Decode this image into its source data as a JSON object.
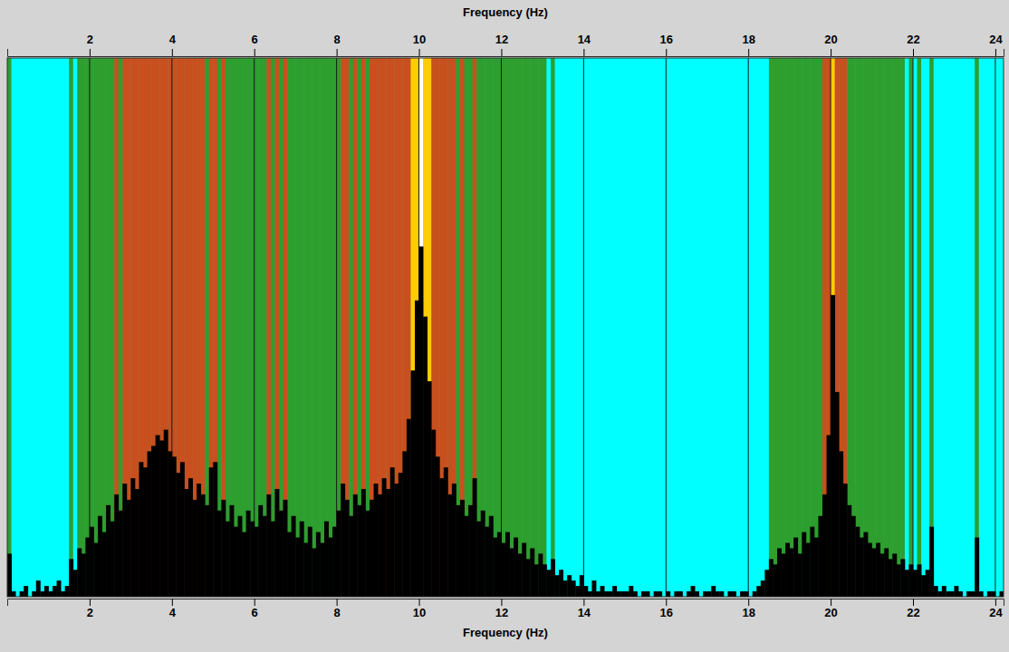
{
  "chart_data": {
    "type": "bar",
    "xlabel": "Frequency (Hz)",
    "color": "#000000",
    "grid": true,
    "tick_labels": "x",
    "xlim": [
      0,
      24.2
    ],
    "ylim": [
      0,
      100
    ],
    "xticks": [
      2,
      4,
      6,
      8,
      10,
      12,
      14,
      16,
      18,
      20,
      22,
      24
    ],
    "x": [
      0.05,
      0.15,
      0.25,
      0.35,
      0.45,
      0.55,
      0.65,
      0.75,
      0.85,
      0.95,
      1.05,
      1.15,
      1.25,
      1.35,
      1.45,
      1.55,
      1.65,
      1.75,
      1.85,
      1.95,
      2.05,
      2.15,
      2.25,
      2.35,
      2.45,
      2.55,
      2.65,
      2.75,
      2.85,
      2.95,
      3.05,
      3.15,
      3.25,
      3.35,
      3.45,
      3.55,
      3.65,
      3.75,
      3.85,
      3.95,
      4.05,
      4.15,
      4.25,
      4.35,
      4.45,
      4.55,
      4.65,
      4.75,
      4.85,
      4.95,
      5.05,
      5.15,
      5.25,
      5.35,
      5.45,
      5.55,
      5.65,
      5.75,
      5.85,
      5.95,
      6.05,
      6.15,
      6.25,
      6.35,
      6.45,
      6.55,
      6.65,
      6.75,
      6.85,
      6.95,
      7.05,
      7.15,
      7.25,
      7.35,
      7.45,
      7.55,
      7.65,
      7.75,
      7.85,
      7.95,
      8.05,
      8.15,
      8.25,
      8.35,
      8.45,
      8.55,
      8.65,
      8.75,
      8.85,
      8.95,
      9.05,
      9.15,
      9.25,
      9.35,
      9.45,
      9.55,
      9.65,
      9.75,
      9.85,
      9.95,
      10.05,
      10.15,
      10.25,
      10.35,
      10.45,
      10.55,
      10.65,
      10.75,
      10.85,
      10.95,
      11.05,
      11.15,
      11.25,
      11.35,
      11.45,
      11.55,
      11.65,
      11.75,
      11.85,
      11.95,
      12.05,
      12.15,
      12.25,
      12.35,
      12.45,
      12.55,
      12.65,
      12.75,
      12.85,
      12.95,
      13.05,
      13.15,
      13.25,
      13.35,
      13.45,
      13.55,
      13.65,
      13.75,
      13.85,
      13.95,
      14.05,
      14.15,
      14.25,
      14.35,
      14.45,
      14.55,
      14.65,
      14.75,
      14.85,
      14.95,
      15.05,
      15.15,
      15.25,
      15.35,
      15.45,
      15.55,
      15.65,
      15.75,
      15.85,
      15.95,
      16.05,
      16.15,
      16.25,
      16.35,
      16.45,
      16.55,
      16.65,
      16.75,
      16.85,
      16.95,
      17.05,
      17.15,
      17.25,
      17.35,
      17.45,
      17.55,
      17.65,
      17.75,
      17.85,
      17.95,
      18.05,
      18.15,
      18.25,
      18.35,
      18.45,
      18.55,
      18.65,
      18.75,
      18.85,
      18.95,
      19.05,
      19.15,
      19.25,
      19.35,
      19.45,
      19.55,
      19.65,
      19.75,
      19.85,
      19.95,
      20.05,
      20.15,
      20.25,
      20.35,
      20.45,
      20.55,
      20.65,
      20.75,
      20.85,
      20.95,
      21.05,
      21.15,
      21.25,
      21.35,
      21.45,
      21.55,
      21.65,
      21.75,
      21.85,
      21.95,
      22.05,
      22.15,
      22.25,
      22.35,
      22.45,
      22.55,
      22.65,
      22.75,
      22.85,
      22.95,
      23.05,
      23.15,
      23.25,
      23.35,
      23.45,
      23.55,
      23.65,
      23.75,
      23.85,
      23.95,
      24.05,
      24.15
    ],
    "values": [
      8,
      1,
      0,
      1,
      2,
      0,
      1,
      3,
      1,
      2,
      1,
      2,
      3,
      1,
      2,
      7,
      5,
      9,
      8,
      11,
      13,
      10,
      15,
      12,
      17,
      14,
      19,
      16,
      21,
      18,
      22,
      20,
      25,
      24,
      27,
      28,
      30,
      29,
      31,
      27,
      26,
      23,
      25,
      20,
      22,
      18,
      21,
      19,
      17,
      24,
      25,
      16,
      18,
      14,
      17,
      13,
      15,
      12,
      16,
      14,
      13,
      17,
      15,
      19,
      14,
      20,
      16,
      18,
      12,
      15,
      11,
      14,
      10,
      13,
      9,
      12,
      10,
      14,
      11,
      13,
      16,
      21,
      18,
      15,
      19,
      17,
      20,
      16,
      18,
      21,
      19,
      22,
      20,
      24,
      21,
      23,
      27,
      33,
      42,
      55,
      65,
      52,
      40,
      31,
      26,
      22,
      24,
      19,
      21,
      17,
      18,
      15,
      17,
      22,
      14,
      16,
      13,
      15,
      11,
      12,
      10,
      12,
      9,
      11,
      8,
      10,
      7,
      9,
      6,
      8,
      6,
      5,
      7,
      4,
      5,
      3,
      4,
      3,
      2,
      4,
      2,
      1,
      3,
      1,
      2,
      1,
      1,
      2,
      1,
      1,
      1,
      2,
      1,
      0,
      1,
      1,
      0,
      1,
      1,
      0,
      1,
      0,
      1,
      1,
      0,
      1,
      2,
      1,
      0,
      1,
      1,
      2,
      1,
      1,
      0,
      1,
      1,
      0,
      1,
      1,
      0,
      1,
      2,
      3,
      5,
      7,
      6,
      9,
      8,
      10,
      9,
      11,
      8,
      12,
      10,
      13,
      11,
      15,
      19,
      30,
      56,
      38,
      27,
      21,
      17,
      15,
      13,
      11,
      12,
      10,
      9,
      10,
      8,
      9,
      7,
      8,
      6,
      7,
      5,
      6,
      5,
      6,
      4,
      5,
      13,
      2,
      1,
      2,
      1,
      1,
      2,
      1,
      0,
      1,
      1,
      11,
      1,
      0,
      1,
      1,
      0,
      1
    ],
    "colors": [
      "#2e9e2e",
      "#00ffff",
      "#00ffff",
      "#00ffff",
      "#00ffff",
      "#00ffff",
      "#00ffff",
      "#00ffff",
      "#00ffff",
      "#00ffff",
      "#00ffff",
      "#00ffff",
      "#00ffff",
      "#00ffff",
      "#00ffff",
      "#2e9e2e",
      "#00ffff",
      "#2e9e2e",
      "#2e9e2e",
      "#2e9e2e",
      "#2e9e2e",
      "#2e9e2e",
      "#2e9e2e",
      "#2e9e2e",
      "#2e9e2e",
      "#2e9e2e",
      "#c8501e",
      "#2e9e2e",
      "#c8501e",
      "#c8501e",
      "#c8501e",
      "#c8501e",
      "#c8501e",
      "#c8501e",
      "#c8501e",
      "#c8501e",
      "#c8501e",
      "#c8501e",
      "#c8501e",
      "#c8501e",
      "#c8501e",
      "#c8501e",
      "#c8501e",
      "#c8501e",
      "#c8501e",
      "#c8501e",
      "#c8501e",
      "#c8501e",
      "#2e9e2e",
      "#c8501e",
      "#c8501e",
      "#2e9e2e",
      "#c8501e",
      "#2e9e2e",
      "#2e9e2e",
      "#2e9e2e",
      "#2e9e2e",
      "#2e9e2e",
      "#2e9e2e",
      "#2e9e2e",
      "#2e9e2e",
      "#2e9e2e",
      "#2e9e2e",
      "#c8501e",
      "#2e9e2e",
      "#c8501e",
      "#2e9e2e",
      "#c8501e",
      "#2e9e2e",
      "#2e9e2e",
      "#2e9e2e",
      "#2e9e2e",
      "#2e9e2e",
      "#2e9e2e",
      "#2e9e2e",
      "#2e9e2e",
      "#2e9e2e",
      "#2e9e2e",
      "#2e9e2e",
      "#2e9e2e",
      "#2e9e2e",
      "#c8501e",
      "#c8501e",
      "#2e9e2e",
      "#c8501e",
      "#2e9e2e",
      "#c8501e",
      "#2e9e2e",
      "#c8501e",
      "#c8501e",
      "#c8501e",
      "#c8501e",
      "#c8501e",
      "#c8501e",
      "#c8501e",
      "#c8501e",
      "#c8501e",
      "#c8501e",
      "#ffcc00",
      "#ffcc00",
      "#ffffff",
      "#ffcc00",
      "#ffcc00",
      "#c8501e",
      "#c8501e",
      "#c8501e",
      "#c8501e",
      "#c8501e",
      "#c8501e",
      "#2e9e2e",
      "#c8501e",
      "#2e9e2e",
      "#2e9e2e",
      "#c8501e",
      "#2e9e2e",
      "#2e9e2e",
      "#2e9e2e",
      "#2e9e2e",
      "#2e9e2e",
      "#2e9e2e",
      "#2e9e2e",
      "#2e9e2e",
      "#2e9e2e",
      "#2e9e2e",
      "#2e9e2e",
      "#2e9e2e",
      "#2e9e2e",
      "#2e9e2e",
      "#2e9e2e",
      "#2e9e2e",
      "#2e9e2e",
      "#00ffff",
      "#2e9e2e",
      "#00ffff",
      "#00ffff",
      "#00ffff",
      "#00ffff",
      "#00ffff",
      "#00ffff",
      "#00ffff",
      "#00ffff",
      "#00ffff",
      "#00ffff",
      "#00ffff",
      "#00ffff",
      "#00ffff",
      "#00ffff",
      "#00ffff",
      "#00ffff",
      "#00ffff",
      "#00ffff",
      "#00ffff",
      "#00ffff",
      "#00ffff",
      "#00ffff",
      "#00ffff",
      "#00ffff",
      "#00ffff",
      "#00ffff",
      "#00ffff",
      "#00ffff",
      "#00ffff",
      "#00ffff",
      "#00ffff",
      "#00ffff",
      "#00ffff",
      "#00ffff",
      "#00ffff",
      "#00ffff",
      "#00ffff",
      "#00ffff",
      "#00ffff",
      "#00ffff",
      "#00ffff",
      "#00ffff",
      "#00ffff",
      "#00ffff",
      "#00ffff",
      "#00ffff",
      "#00ffff",
      "#00ffff",
      "#00ffff",
      "#00ffff",
      "#00ffff",
      "#00ffff",
      "#2e9e2e",
      "#2e9e2e",
      "#2e9e2e",
      "#2e9e2e",
      "#2e9e2e",
      "#2e9e2e",
      "#2e9e2e",
      "#2e9e2e",
      "#2e9e2e",
      "#2e9e2e",
      "#2e9e2e",
      "#2e9e2e",
      "#2e9e2e",
      "#c8501e",
      "#c8501e",
      "#ffcc00",
      "#c8501e",
      "#c8501e",
      "#c8501e",
      "#2e9e2e",
      "#2e9e2e",
      "#2e9e2e",
      "#2e9e2e",
      "#2e9e2e",
      "#2e9e2e",
      "#2e9e2e",
      "#2e9e2e",
      "#2e9e2e",
      "#2e9e2e",
      "#2e9e2e",
      "#2e9e2e",
      "#2e9e2e",
      "#2e9e2e",
      "#00ffff",
      "#2e9e2e",
      "#00ffff",
      "#2e9e2e",
      "#00ffff",
      "#00ffff",
      "#2e9e2e",
      "#00ffff",
      "#00ffff",
      "#00ffff",
      "#00ffff",
      "#00ffff",
      "#00ffff",
      "#00ffff",
      "#00ffff",
      "#00ffff",
      "#00ffff",
      "#2e9e2e",
      "#00ffff",
      "#00ffff",
      "#00ffff",
      "#00ffff",
      "#00ffff",
      "#00ffff"
    ]
  }
}
